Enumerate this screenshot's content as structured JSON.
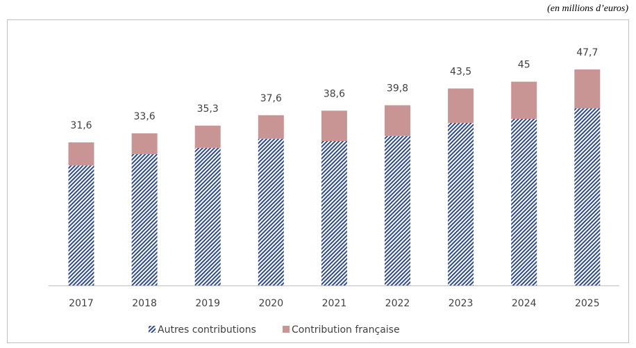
{
  "chart_data": {
    "type": "stacked_bar",
    "subtitle": "(en millions d’euros)",
    "categories": [
      "2017",
      "2018",
      "2019",
      "2020",
      "2021",
      "2022",
      "2023",
      "2024",
      "2025"
    ],
    "series": [
      {
        "name": "Autres contributions",
        "color": "#2e4a8c",
        "values": [
          26.5,
          29.0,
          30.4,
          32.4,
          31.9,
          33.0,
          35.9,
          36.8,
          39.1
        ]
      },
      {
        "name": "Contribution française",
        "color": "#c99494",
        "values": [
          5.1,
          4.6,
          4.9,
          5.2,
          6.7,
          6.8,
          7.6,
          8.2,
          8.6
        ]
      }
    ],
    "totals": [
      31.6,
      33.6,
      35.3,
      37.6,
      38.6,
      39.8,
      43.5,
      45,
      47.7
    ],
    "total_labels": [
      "31,6",
      "33,6",
      "35,3",
      "37,6",
      "38,6",
      "39,8",
      "43,5",
      "45",
      "47,7"
    ],
    "ylim": [
      0,
      55
    ]
  }
}
